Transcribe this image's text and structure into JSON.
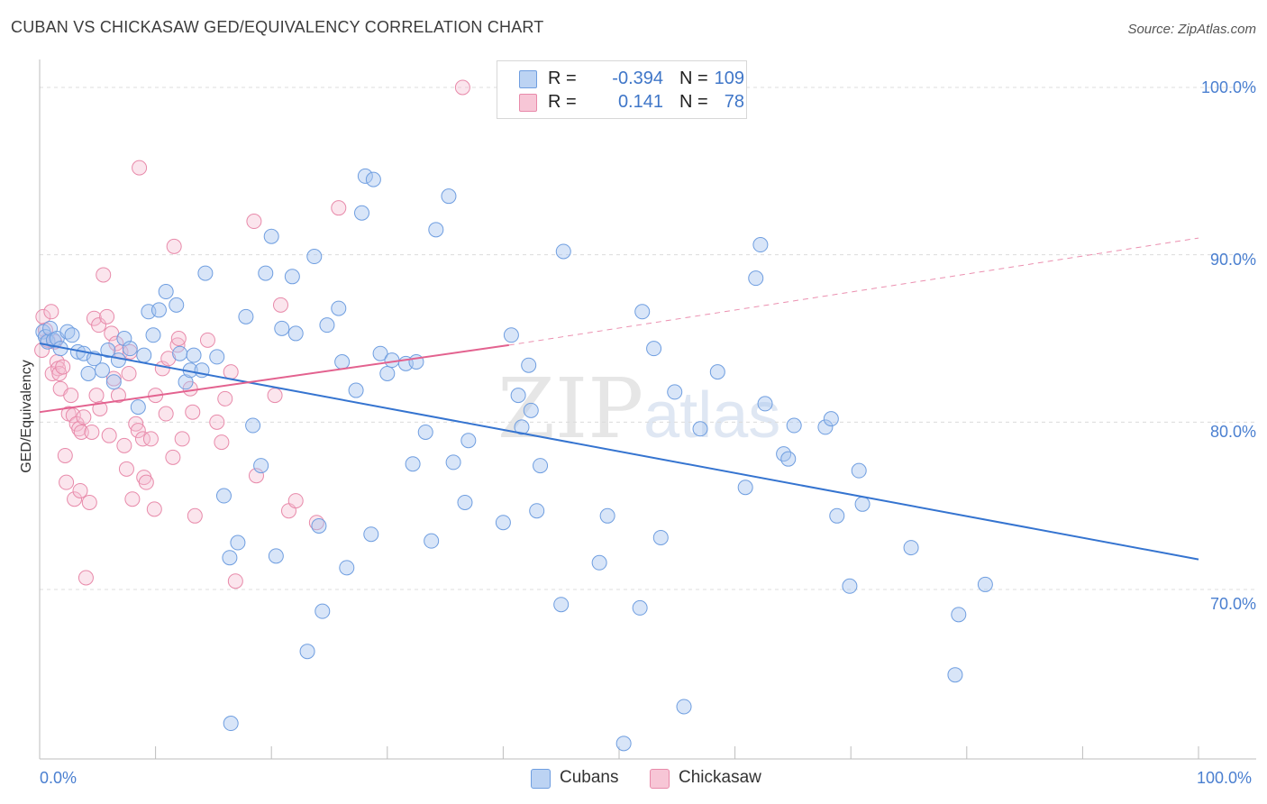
{
  "header": {
    "title": "CUBAN VS CHICKASAW GED/EQUIVALENCY CORRELATION CHART",
    "source": "Source: ZipAtlas.com"
  },
  "watermark": {
    "zip": "ZIP",
    "atlas": "atlas"
  },
  "legend": {
    "r_label": "R =",
    "n_label": "N =",
    "rows": [
      {
        "name": "Cubans",
        "r": "-0.394",
        "n": "109",
        "fill": "#bcd3f3",
        "stroke": "#6f9ee0"
      },
      {
        "name": "Chickasaw",
        "r": "0.141",
        "n": "78",
        "fill": "#f7c6d6",
        "stroke": "#e88aaa"
      }
    ]
  },
  "colors": {
    "blue_point_fill": "rgba(168,198,240,0.45)",
    "blue_point_stroke": "#6f9ee0",
    "blue_line": "#3574d0",
    "pink_point_fill": "rgba(246,190,210,0.4)",
    "pink_point_stroke": "#e88aaa",
    "pink_line": "#e3628f",
    "grid": "#dcdcdc",
    "tick_label": "#4a7fd0"
  },
  "chart_data": {
    "type": "scatter",
    "title": "CUBAN VS CHICKASAW GED/EQUIVALENCY CORRELATION CHART",
    "xlabel": "",
    "ylabel": "GED/Equivalency",
    "xlim": [
      0,
      100
    ],
    "ylim": [
      60.3,
      101.5
    ],
    "x_tick_labels": [
      "0.0%",
      "100.0%"
    ],
    "y_ticks": [
      70,
      80,
      90,
      100
    ],
    "y_tick_labels": [
      "70.0%",
      "80.0%",
      "90.0%",
      "100.0%"
    ],
    "grid": true,
    "legend_position": "top-center",
    "series": [
      {
        "name": "Cubans",
        "r": -0.394,
        "n": 109,
        "trend": {
          "x": [
            0,
            100
          ],
          "y": [
            84.7,
            71.8
          ],
          "style": "solid"
        },
        "points": [
          [
            0.3,
            85.4
          ],
          [
            0.5,
            85.1
          ],
          [
            0.7,
            84.8
          ],
          [
            0.9,
            85.6
          ],
          [
            1.2,
            84.9
          ],
          [
            1.5,
            85.0
          ],
          [
            1.8,
            84.4
          ],
          [
            2.4,
            85.4
          ],
          [
            2.8,
            85.2
          ],
          [
            3.3,
            84.2
          ],
          [
            3.8,
            84.1
          ],
          [
            4.2,
            82.9
          ],
          [
            4.7,
            83.8
          ],
          [
            5.4,
            83.1
          ],
          [
            5.9,
            84.3
          ],
          [
            6.4,
            82.4
          ],
          [
            6.8,
            83.7
          ],
          [
            7.3,
            85.0
          ],
          [
            7.8,
            84.4
          ],
          [
            8.5,
            80.9
          ],
          [
            9.0,
            84.0
          ],
          [
            9.4,
            86.6
          ],
          [
            9.8,
            85.2
          ],
          [
            10.3,
            86.7
          ],
          [
            10.9,
            87.8
          ],
          [
            11.8,
            87.0
          ],
          [
            12.1,
            84.1
          ],
          [
            12.6,
            82.4
          ],
          [
            13.0,
            83.1
          ],
          [
            13.3,
            84.0
          ],
          [
            14.0,
            83.1
          ],
          [
            14.3,
            88.9
          ],
          [
            15.3,
            83.9
          ],
          [
            15.9,
            75.6
          ],
          [
            16.4,
            71.9
          ],
          [
            16.5,
            62.0
          ],
          [
            17.1,
            72.8
          ],
          [
            17.8,
            86.3
          ],
          [
            18.4,
            79.8
          ],
          [
            19.1,
            77.4
          ],
          [
            19.5,
            88.9
          ],
          [
            20.0,
            91.1
          ],
          [
            20.4,
            72.0
          ],
          [
            20.9,
            85.6
          ],
          [
            21.8,
            88.7
          ],
          [
            22.1,
            85.3
          ],
          [
            23.1,
            66.3
          ],
          [
            23.7,
            89.9
          ],
          [
            24.1,
            73.8
          ],
          [
            24.4,
            68.7
          ],
          [
            24.8,
            85.8
          ],
          [
            25.8,
            86.8
          ],
          [
            26.1,
            83.6
          ],
          [
            26.5,
            71.3
          ],
          [
            27.3,
            81.9
          ],
          [
            27.8,
            92.5
          ],
          [
            28.1,
            94.7
          ],
          [
            28.6,
            73.3
          ],
          [
            28.8,
            94.5
          ],
          [
            29.4,
            84.1
          ],
          [
            30.0,
            82.9
          ],
          [
            30.4,
            83.7
          ],
          [
            31.6,
            83.5
          ],
          [
            32.2,
            77.5
          ],
          [
            32.5,
            83.6
          ],
          [
            33.3,
            79.4
          ],
          [
            33.8,
            72.9
          ],
          [
            34.2,
            91.5
          ],
          [
            35.3,
            93.5
          ],
          [
            35.7,
            77.6
          ],
          [
            36.7,
            75.2
          ],
          [
            37.0,
            78.9
          ],
          [
            40.0,
            74.0
          ],
          [
            40.7,
            85.2
          ],
          [
            41.3,
            81.6
          ],
          [
            41.6,
            79.7
          ],
          [
            42.2,
            83.4
          ],
          [
            42.4,
            80.7
          ],
          [
            42.9,
            74.7
          ],
          [
            43.2,
            77.4
          ],
          [
            45.0,
            69.1
          ],
          [
            45.2,
            90.2
          ],
          [
            48.3,
            71.6
          ],
          [
            49.0,
            74.4
          ],
          [
            50.4,
            60.8
          ],
          [
            51.8,
            68.9
          ],
          [
            52.0,
            86.6
          ],
          [
            53.0,
            84.4
          ],
          [
            53.6,
            73.1
          ],
          [
            54.8,
            81.8
          ],
          [
            55.6,
            63.0
          ],
          [
            57.0,
            79.6
          ],
          [
            58.5,
            83.0
          ],
          [
            60.9,
            76.1
          ],
          [
            61.8,
            88.6
          ],
          [
            62.2,
            90.6
          ],
          [
            62.6,
            81.1
          ],
          [
            64.2,
            78.1
          ],
          [
            64.6,
            77.8
          ],
          [
            65.1,
            79.8
          ],
          [
            67.8,
            79.7
          ],
          [
            68.3,
            80.2
          ],
          [
            68.8,
            74.4
          ],
          [
            69.9,
            70.2
          ],
          [
            70.7,
            77.1
          ],
          [
            71.0,
            75.1
          ],
          [
            75.2,
            72.5
          ],
          [
            79.3,
            68.5
          ],
          [
            79.0,
            64.9
          ],
          [
            81.6,
            70.3
          ]
        ]
      },
      {
        "name": "Chickasaw",
        "r": 0.141,
        "n": 78,
        "trend": {
          "x": [
            0,
            40.5,
            100
          ],
          "y": [
            80.6,
            84.6,
            91.0
          ],
          "style": "solid-then-dashed"
        },
        "points": [
          [
            0.2,
            84.3
          ],
          [
            0.3,
            86.3
          ],
          [
            0.5,
            85.5
          ],
          [
            0.7,
            84.9
          ],
          [
            1.0,
            86.6
          ],
          [
            1.1,
            82.9
          ],
          [
            1.3,
            84.8
          ],
          [
            1.5,
            83.6
          ],
          [
            1.6,
            83.2
          ],
          [
            1.7,
            82.9
          ],
          [
            1.8,
            82.0
          ],
          [
            2.0,
            83.3
          ],
          [
            2.2,
            78.0
          ],
          [
            2.3,
            76.4
          ],
          [
            2.5,
            80.5
          ],
          [
            2.7,
            81.6
          ],
          [
            2.9,
            80.4
          ],
          [
            3.0,
            75.4
          ],
          [
            3.2,
            79.9
          ],
          [
            3.4,
            79.6
          ],
          [
            3.5,
            75.9
          ],
          [
            3.6,
            79.4
          ],
          [
            3.8,
            80.3
          ],
          [
            4.0,
            70.7
          ],
          [
            4.3,
            75.2
          ],
          [
            4.5,
            79.4
          ],
          [
            4.7,
            86.2
          ],
          [
            4.9,
            81.6
          ],
          [
            5.1,
            85.8
          ],
          [
            5.2,
            80.8
          ],
          [
            5.5,
            88.8
          ],
          [
            5.8,
            86.3
          ],
          [
            6.0,
            79.2
          ],
          [
            6.2,
            85.3
          ],
          [
            6.4,
            82.6
          ],
          [
            6.6,
            84.7
          ],
          [
            6.8,
            81.6
          ],
          [
            7.0,
            84.2
          ],
          [
            7.3,
            78.6
          ],
          [
            7.5,
            77.2
          ],
          [
            7.7,
            82.9
          ],
          [
            7.8,
            84.2
          ],
          [
            8.0,
            75.4
          ],
          [
            8.3,
            79.9
          ],
          [
            8.5,
            79.5
          ],
          [
            8.6,
            95.2
          ],
          [
            8.9,
            79.0
          ],
          [
            9.0,
            76.7
          ],
          [
            9.2,
            76.4
          ],
          [
            9.6,
            79.0
          ],
          [
            9.9,
            74.8
          ],
          [
            10.0,
            81.6
          ],
          [
            10.6,
            83.2
          ],
          [
            10.9,
            80.5
          ],
          [
            11.1,
            83.8
          ],
          [
            11.5,
            77.9
          ],
          [
            11.6,
            90.5
          ],
          [
            11.9,
            84.6
          ],
          [
            12.3,
            79.0
          ],
          [
            13.0,
            82.0
          ],
          [
            13.2,
            80.6
          ],
          [
            13.4,
            74.4
          ],
          [
            14.5,
            84.9
          ],
          [
            15.3,
            80.0
          ],
          [
            15.7,
            78.8
          ],
          [
            16.0,
            81.4
          ],
          [
            16.5,
            83.0
          ],
          [
            16.9,
            70.5
          ],
          [
            18.5,
            92.0
          ],
          [
            18.7,
            76.8
          ],
          [
            20.3,
            81.6
          ],
          [
            20.8,
            87.0
          ],
          [
            21.5,
            74.7
          ],
          [
            22.1,
            75.3
          ],
          [
            23.9,
            74.0
          ],
          [
            25.8,
            92.8
          ],
          [
            36.5,
            100.0
          ],
          [
            12.0,
            85.0
          ]
        ]
      }
    ]
  }
}
